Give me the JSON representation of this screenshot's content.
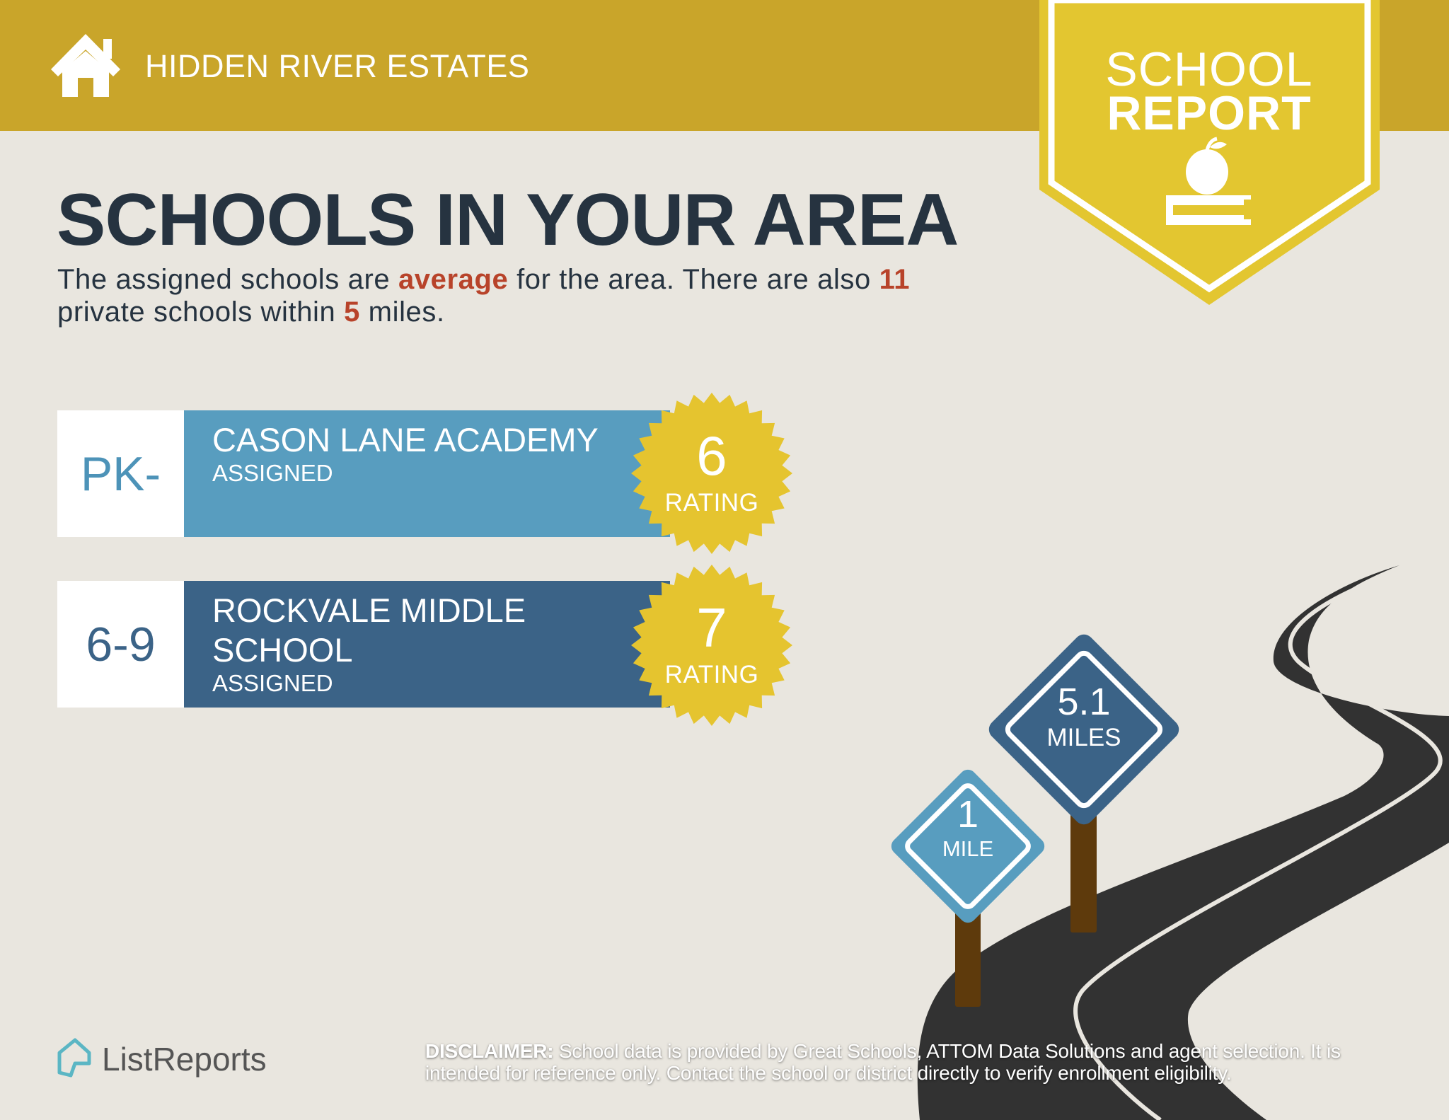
{
  "header": {
    "title": "HIDDEN RIVER ESTATES",
    "icon": "home-icon"
  },
  "badge": {
    "line1": "SCHOOL",
    "line2": "REPORT",
    "icon": "apple-on-book-icon"
  },
  "main": {
    "title": "SCHOOLS IN YOUR AREA",
    "summary": {
      "part1": "The assigned schools are ",
      "quality": "average",
      "part2": " for the area. There are also ",
      "private_count": "11",
      "part3": " private schools within ",
      "radius": "5",
      "part4": " miles."
    }
  },
  "schools": [
    {
      "grades": "PK-",
      "name": "CASON LANE ACADEMY",
      "status": "ASSIGNED",
      "rating": "6",
      "rating_label": "RATING",
      "color": "#589dbf"
    },
    {
      "grades": "6-9",
      "name_line1": "ROCKVALE MIDDLE",
      "name_line2": "SCHOOL",
      "status": "ASSIGNED",
      "rating": "7",
      "rating_label": "RATING",
      "color": "#3b6387"
    }
  ],
  "signs": [
    {
      "value": "5.1",
      "unit": "MILES",
      "color": "#3b6387"
    },
    {
      "value": "1",
      "unit": "MILE",
      "color": "#589dbf"
    }
  ],
  "footer": {
    "logo": "ListReports",
    "disclaimer_label": "DISCLAIMER:",
    "disclaimer_text": " School data is provided by Great Schools, ATTOM Data Solutions and agent selection. It is intended for reference only. Contact the school or district directly to verify enrollment eligibility."
  },
  "colors": {
    "header": "#c9a52a",
    "badge": "#e3c630",
    "seal": "#e5c42f",
    "title": "#263340",
    "highlight": "#b8432a",
    "background": "#e9e6df"
  }
}
